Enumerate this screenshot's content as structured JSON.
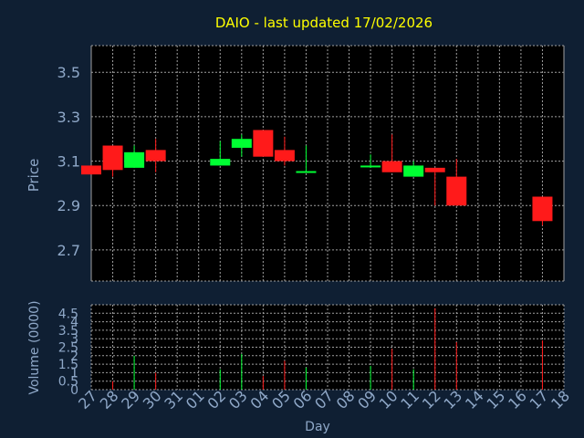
{
  "colors": {
    "background": "#0f1f33",
    "plot_background": "#000000",
    "grid": "#a0a0a0",
    "axis_text": "#8fa8c8",
    "title": "#ffff00",
    "up": "#00ff33",
    "down": "#ff1a1a"
  },
  "chart_data": [
    {
      "type": "candlestick",
      "title": "DAIO - last updated 17/02/2026",
      "ylabel": "Price",
      "ylim": [
        2.56,
        3.62
      ],
      "y_ticks": [
        "2.7",
        "2.9",
        "3.1",
        "3.3",
        "3.5"
      ],
      "y_tick_values": [
        2.7,
        2.9,
        3.1,
        3.3,
        3.5
      ],
      "grid": true,
      "candles": [
        {
          "day": "27",
          "open": 3.08,
          "high": 3.08,
          "low": 3.04,
          "close": 3.04
        },
        {
          "day": "28",
          "open": 3.17,
          "high": 3.17,
          "low": 3.03,
          "close": 3.06
        },
        {
          "day": "29",
          "open": 3.07,
          "high": 3.17,
          "low": 3.07,
          "close": 3.14
        },
        {
          "day": "30",
          "open": 3.15,
          "high": 3.2,
          "low": 3.05,
          "close": 3.1
        },
        {
          "day": "02",
          "open": 3.08,
          "high": 3.19,
          "low": 3.08,
          "close": 3.11
        },
        {
          "day": "03",
          "open": 3.16,
          "high": 3.22,
          "low": 3.12,
          "close": 3.2
        },
        {
          "day": "04",
          "open": 3.24,
          "high": 3.24,
          "low": 3.12,
          "close": 3.12
        },
        {
          "day": "05",
          "open": 3.15,
          "high": 3.21,
          "low": 3.08,
          "close": 3.1
        },
        {
          "day": "06",
          "open": 3.05,
          "high": 3.17,
          "low": 3.05,
          "close": 3.055
        },
        {
          "day": "09",
          "open": 3.075,
          "high": 3.13,
          "low": 3.07,
          "close": 3.08
        },
        {
          "day": "10",
          "open": 3.1,
          "high": 3.22,
          "low": 3.05,
          "close": 3.05
        },
        {
          "day": "11",
          "open": 3.03,
          "high": 3.1,
          "low": 3.03,
          "close": 3.08
        },
        {
          "day": "12",
          "open": 3.07,
          "high": 3.07,
          "low": 2.9,
          "close": 3.05
        },
        {
          "day": "13",
          "open": 3.03,
          "high": 3.11,
          "low": 2.9,
          "close": 2.9
        },
        {
          "day": "17",
          "open": 2.94,
          "high": 2.94,
          "low": 2.81,
          "close": 2.83
        }
      ]
    },
    {
      "type": "bar",
      "xlabel": "Day",
      "ylabel": "Volume (0000)",
      "ylim": [
        0,
        5
      ],
      "y_ticks": [
        "0",
        "0.5",
        "1",
        "1.5",
        "2",
        "2.5",
        "3",
        "3.5",
        "4",
        "4.5",
        "5"
      ],
      "y_tick_values": [
        0,
        0.5,
        1,
        1.5,
        2,
        2.5,
        3,
        3.5,
        4,
        4.5,
        5
      ],
      "y_tick_labels_shown": [
        "0",
        "0.5",
        "1",
        "1.5",
        "2",
        "2.5",
        "3",
        "3.5",
        "4",
        "4.5"
      ],
      "categories": [
        "27",
        "28",
        "29",
        "30",
        "31",
        "01",
        "02",
        "03",
        "04",
        "05",
        "06",
        "07",
        "08",
        "09",
        "10",
        "11",
        "12",
        "13",
        "14",
        "15",
        "16",
        "17",
        "18"
      ],
      "volumes": [
        {
          "day": "28",
          "value": 0.5,
          "dir": "down"
        },
        {
          "day": "29",
          "value": 2.0,
          "dir": "up"
        },
        {
          "day": "30",
          "value": 1.0,
          "dir": "down"
        },
        {
          "day": "02",
          "value": 1.2,
          "dir": "up"
        },
        {
          "day": "03",
          "value": 2.1,
          "dir": "up"
        },
        {
          "day": "04",
          "value": 0.8,
          "dir": "down"
        },
        {
          "day": "05",
          "value": 1.7,
          "dir": "down"
        },
        {
          "day": "06",
          "value": 1.3,
          "dir": "up"
        },
        {
          "day": "09",
          "value": 1.4,
          "dir": "up"
        },
        {
          "day": "10",
          "value": 2.4,
          "dir": "down"
        },
        {
          "day": "11",
          "value": 1.2,
          "dir": "up"
        },
        {
          "day": "12",
          "value": 4.8,
          "dir": "down"
        },
        {
          "day": "13",
          "value": 2.8,
          "dir": "down"
        },
        {
          "day": "17",
          "value": 2.9,
          "dir": "down"
        }
      ]
    }
  ]
}
